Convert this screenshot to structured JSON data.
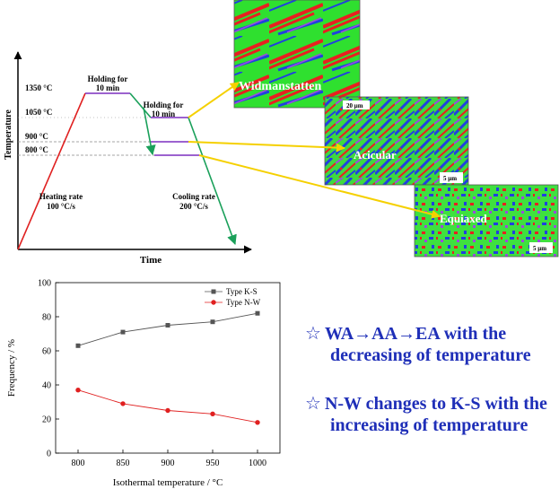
{
  "schematic": {
    "y_axis_label": "Temperature",
    "x_axis_label": "Time",
    "temp_labels": [
      "1350 °C",
      "1050 °C",
      "900 °C",
      "800 °C"
    ],
    "hold1_line1": "Holding for",
    "hold1_line2": "10 min",
    "hold2_line1": "Holding for",
    "hold2_line2": "10 min",
    "heating_line1": "Heating rate",
    "heating_line2": "100 °C/s",
    "cooling_line1": "Cooling rate",
    "cooling_line2": "200 °C/s",
    "colors": {
      "heating": "#e02020",
      "cooling": "#1aa05a",
      "holding": "#7b2fbf",
      "arrow": "#f5d000"
    }
  },
  "micrographs": [
    {
      "label": "Widmanstatten",
      "scale": "20 μm"
    },
    {
      "label": "Acicular",
      "scale": "5 μm"
    },
    {
      "label": "Equiaxed",
      "scale": "5 μm"
    }
  ],
  "chart_data": {
    "type": "line",
    "x": [
      800,
      850,
      900,
      950,
      1000
    ],
    "series": [
      {
        "name": "Type K-S",
        "values": [
          63,
          71,
          75,
          77,
          82
        ],
        "color": "#555555",
        "marker": "square"
      },
      {
        "name": "Type N-W",
        "values": [
          37,
          29,
          25,
          23,
          18
        ],
        "color": "#e02020",
        "marker": "circle"
      }
    ],
    "xlabel": "Isothermal temperature / °C",
    "ylabel": "Frequency / %",
    "xlim": [
      775,
      1025
    ],
    "ylim": [
      0,
      100
    ],
    "xticks": [
      800,
      850,
      900,
      950,
      1000
    ],
    "yticks": [
      0,
      20,
      40,
      60,
      80,
      100
    ],
    "legend": "top-right"
  },
  "callouts": [
    {
      "star": "☆",
      "line1": "WA→AA→EA with the",
      "line2": "decreasing of temperature"
    },
    {
      "star": "☆",
      "line1": "N-W changes to K-S with the",
      "line2": "increasing of temperature"
    }
  ]
}
